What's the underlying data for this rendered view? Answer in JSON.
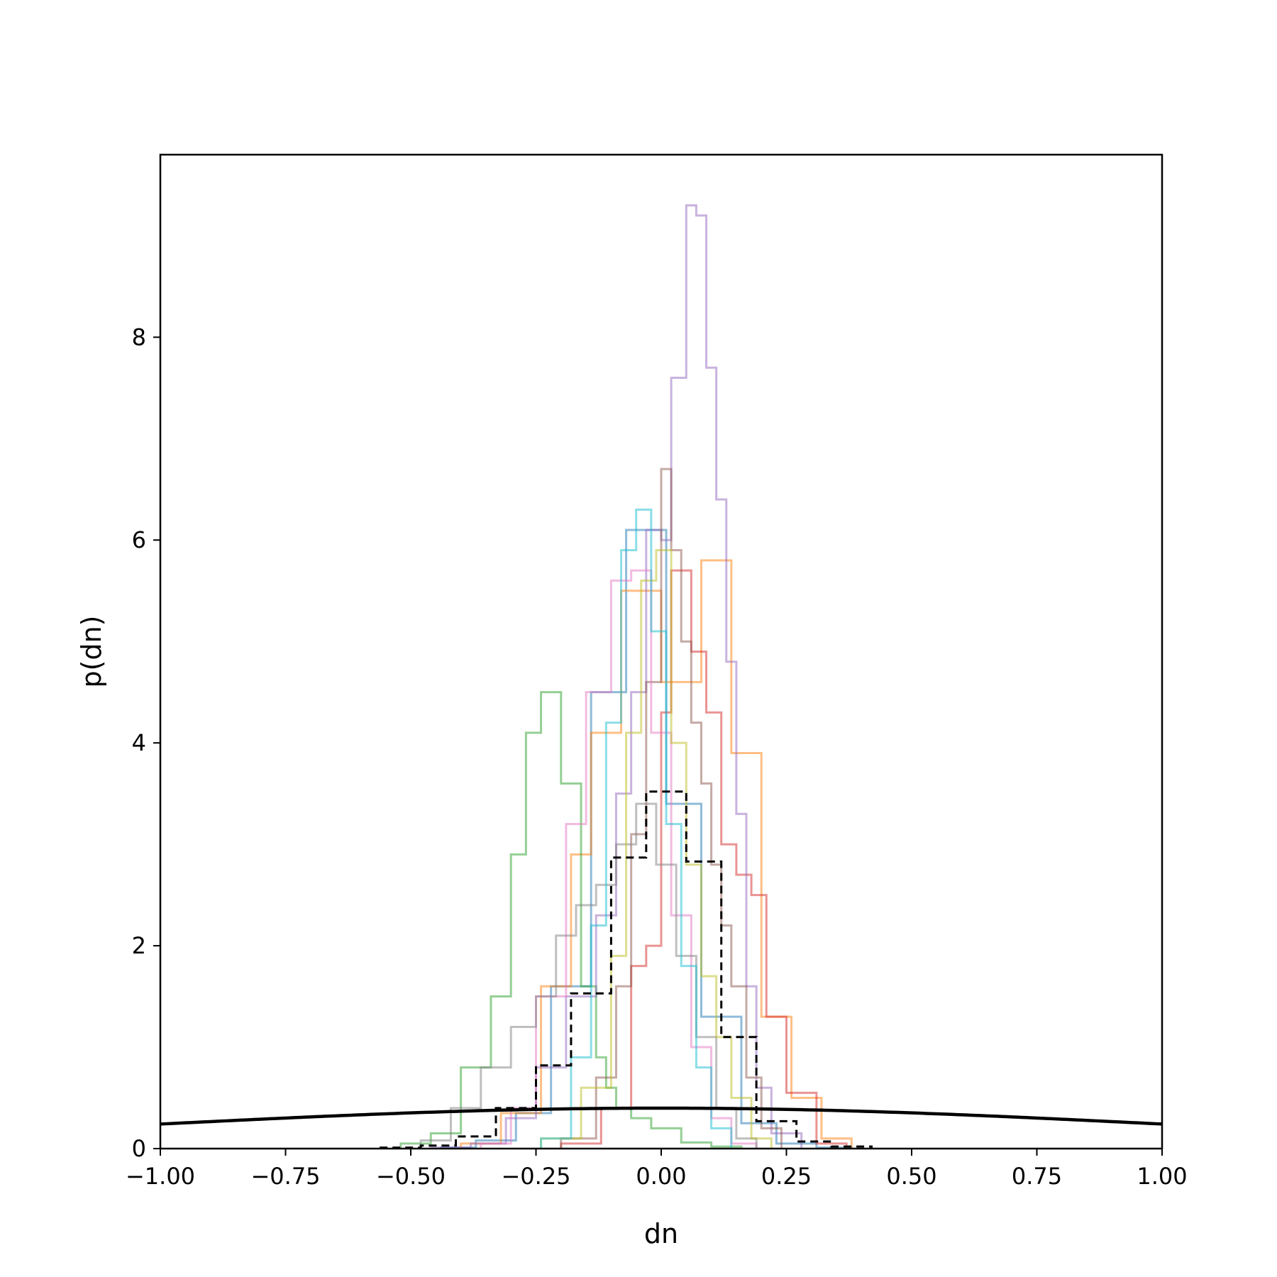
{
  "chart_data": {
    "type": "line",
    "title": "",
    "xlabel": "dn",
    "ylabel": "p(dn)",
    "xlim": [
      -1.0,
      1.0
    ],
    "ylim": [
      0,
      9.8
    ],
    "grid": false,
    "x_ticks": [
      -1.0,
      -0.75,
      -0.5,
      -0.25,
      0.0,
      0.25,
      0.5,
      0.75,
      1.0
    ],
    "x_tick_labels": [
      "−1.00",
      "−0.75",
      "−0.50",
      "−0.25",
      "0.00",
      "0.25",
      "0.50",
      "0.75",
      "1.00"
    ],
    "y_ticks": [
      0,
      2,
      4,
      6,
      8
    ],
    "y_tick_labels": [
      "0",
      "2",
      "4",
      "6",
      "8"
    ],
    "series": [
      {
        "style": "step",
        "color": "#1f77b4",
        "edges": [
          -0.44,
          -0.37,
          -0.29,
          -0.22,
          -0.14,
          -0.07,
          0.01,
          0.08,
          0.16,
          0.23,
          0.31,
          0.38
        ],
        "values": [
          0.01,
          0.08,
          0.35,
          1.6,
          4.5,
          6.1,
          3.4,
          1.3,
          0.25,
          0.05,
          0.01
        ]
      },
      {
        "style": "step",
        "color": "#ff7f0e",
        "edges": [
          -0.4,
          -0.32,
          -0.24,
          -0.18,
          -0.14,
          -0.08,
          0.0,
          0.08,
          0.14,
          0.2,
          0.26,
          0.32,
          0.38
        ],
        "values": [
          0.05,
          0.35,
          1.6,
          2.9,
          4.1,
          5.5,
          4.6,
          5.8,
          3.9,
          1.3,
          0.5,
          0.1
        ]
      },
      {
        "style": "step",
        "color": "#2ca02c",
        "edges": [
          -0.52,
          -0.46,
          -0.4,
          -0.34,
          -0.3,
          -0.27,
          -0.24,
          -0.2,
          -0.16,
          -0.13,
          -0.11,
          -0.09,
          -0.06,
          -0.02,
          0.04,
          0.1,
          0.16
        ],
        "values": [
          0.05,
          0.15,
          0.8,
          1.5,
          2.9,
          4.1,
          4.5,
          3.6,
          1.6,
          0.9,
          0.6,
          0.4,
          0.3,
          0.2,
          0.06,
          0.02
        ]
      },
      {
        "style": "step",
        "color": "#d62728",
        "edges": [
          -0.2,
          -0.12,
          -0.06,
          -0.03,
          0.0,
          0.02,
          0.06,
          0.09,
          0.12,
          0.15,
          0.18,
          0.21,
          0.25,
          0.31,
          0.37
        ],
        "values": [
          0.05,
          0.4,
          1.8,
          2.0,
          4.3,
          5.7,
          4.9,
          4.3,
          3.0,
          2.7,
          2.5,
          1.3,
          0.55,
          0.05
        ]
      },
      {
        "style": "step",
        "color": "#9467bd",
        "edges": [
          -0.46,
          -0.38,
          -0.31,
          -0.25,
          -0.19,
          -0.13,
          -0.09,
          -0.06,
          -0.03,
          0.0,
          0.02,
          0.05,
          0.07,
          0.09,
          0.11,
          0.13,
          0.15,
          0.17,
          0.19,
          0.22,
          0.28
        ],
        "values": [
          0.01,
          0.05,
          0.3,
          0.8,
          1.5,
          2.3,
          3.5,
          4.5,
          6.1,
          6.0,
          7.6,
          9.3,
          9.2,
          7.7,
          6.4,
          4.8,
          3.3,
          1.6,
          0.6,
          0.15
        ]
      },
      {
        "style": "step",
        "color": "#8c564b",
        "edges": [
          -0.2,
          -0.13,
          -0.09,
          -0.06,
          -0.03,
          0.0,
          0.02,
          0.04,
          0.06,
          0.08,
          0.1,
          0.12,
          0.14,
          0.17,
          0.2,
          0.24
        ],
        "values": [
          0.1,
          0.7,
          1.6,
          3.1,
          4.6,
          6.7,
          5.9,
          5.0,
          4.2,
          3.6,
          2.8,
          2.2,
          1.6,
          0.7,
          0.2
        ]
      },
      {
        "style": "step",
        "color": "#e377c2",
        "edges": [
          -0.36,
          -0.3,
          -0.25,
          -0.19,
          -0.15,
          -0.1,
          -0.06,
          -0.02,
          0.02,
          0.06,
          0.1,
          0.14,
          0.19
        ],
        "values": [
          0.05,
          0.4,
          1.5,
          3.2,
          4.5,
          5.6,
          5.7,
          4.1,
          2.3,
          1.0,
          0.3,
          0.05
        ]
      },
      {
        "style": "step",
        "color": "#7f7f7f",
        "edges": [
          -0.48,
          -0.42,
          -0.36,
          -0.3,
          -0.25,
          -0.21,
          -0.17,
          -0.13,
          -0.09,
          -0.05,
          -0.01,
          0.03,
          0.07,
          0.11,
          0.15,
          0.19
        ],
        "values": [
          0.08,
          0.4,
          0.8,
          1.2,
          1.5,
          2.1,
          2.4,
          2.6,
          3.0,
          3.4,
          2.8,
          1.9,
          1.1,
          0.4,
          0.1
        ]
      },
      {
        "style": "step",
        "color": "#bcbd22",
        "edges": [
          -0.24,
          -0.16,
          -0.1,
          -0.07,
          -0.04,
          -0.01,
          0.02,
          0.05,
          0.08,
          0.11,
          0.14,
          0.18,
          0.22
        ],
        "values": [
          0.1,
          0.6,
          1.9,
          4.1,
          5.6,
          5.9,
          4.0,
          2.8,
          1.7,
          1.1,
          0.5,
          0.1
        ]
      },
      {
        "style": "step",
        "color": "#17becf",
        "edges": [
          -0.24,
          -0.18,
          -0.14,
          -0.11,
          -0.08,
          -0.05,
          -0.02,
          0.01,
          0.04,
          0.07,
          0.1,
          0.14
        ],
        "values": [
          0.1,
          0.9,
          2.2,
          4.2,
          5.9,
          6.3,
          5.1,
          3.2,
          1.8,
          0.8,
          0.2
        ]
      },
      {
        "style": "step-dashed",
        "color": "#000000",
        "edges": [
          -0.56,
          -0.48,
          -0.41,
          -0.33,
          -0.25,
          -0.18,
          -0.1,
          -0.03,
          0.05,
          0.12,
          0.19,
          0.27,
          0.34,
          0.42
        ],
        "values": [
          0.01,
          0.03,
          0.12,
          0.4,
          0.82,
          1.53,
          2.87,
          3.52,
          2.83,
          1.1,
          0.27,
          0.07,
          0.02
        ]
      },
      {
        "style": "line",
        "color": "#000000",
        "function": "normal",
        "mu": 0.0,
        "sigma": 1.0
      }
    ]
  }
}
